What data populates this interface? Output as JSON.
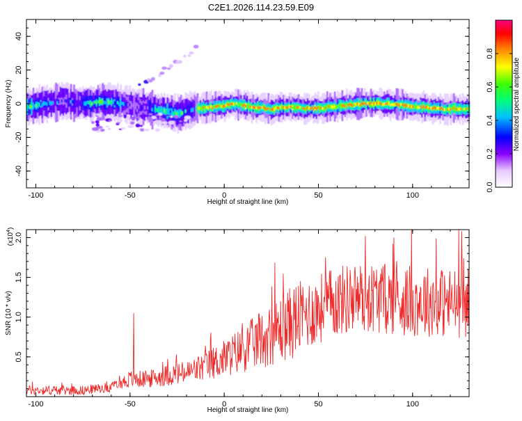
{
  "title": "C2E1.2026.114.23.59.E09",
  "colors": {
    "snr_line": "#ee2b2b"
  },
  "chart_data": [
    {
      "type": "heatmap",
      "name": "spectrogram",
      "xlabel": "Height of straight line (km)",
      "ylabel": "Frequency (Hz)",
      "xlim": [
        -105,
        130
      ],
      "ylim": [
        -50,
        50
      ],
      "xticks": [
        -100,
        -50,
        0,
        50,
        100
      ],
      "yticks": [
        -40,
        -20,
        0,
        20,
        40
      ],
      "ridge_center_hz": [
        [
          -105,
          -2
        ],
        [
          -95,
          0
        ],
        [
          -85,
          1.5
        ],
        [
          -75,
          0
        ],
        [
          -65,
          1
        ],
        [
          -55,
          0
        ],
        [
          -45,
          -2
        ],
        [
          -35,
          -4
        ],
        [
          -25,
          -6
        ],
        [
          -15,
          -3
        ],
        [
          -5,
          -2
        ],
        [
          5,
          0
        ],
        [
          15,
          -2
        ],
        [
          25,
          -3
        ],
        [
          35,
          -2
        ],
        [
          45,
          -3
        ],
        [
          55,
          -2
        ],
        [
          65,
          -1
        ],
        [
          75,
          0
        ],
        [
          85,
          0
        ],
        [
          95,
          -1
        ],
        [
          105,
          -2
        ],
        [
          115,
          -3
        ],
        [
          125,
          -3
        ],
        [
          130,
          -3
        ]
      ],
      "colorbar": {
        "label": "Normalized spectral amplitude",
        "range": [
          0.0,
          1.0
        ],
        "ticks": [
          "0.0",
          "0.2",
          "0.4",
          "0.6",
          "0.8"
        ]
      }
    },
    {
      "type": "line",
      "name": "snr",
      "xlabel": "Height of straight line (km)",
      "ylabel": "SNR (10 * v/v)",
      "yscale_label": "(x10",
      "yscale_exponent": "4",
      "xlim": [
        -105,
        130
      ],
      "ylim": [
        0,
        2.1
      ],
      "xticks": [
        -100,
        -50,
        0,
        50,
        100
      ],
      "yticks": [
        "0.5",
        "1.0",
        "1.5",
        "2.0"
      ],
      "trend_x": [
        -105,
        -90,
        -75,
        -60,
        -50,
        -40,
        -30,
        -20,
        -10,
        0,
        10,
        20,
        30,
        40,
        50,
        60,
        70,
        80,
        90,
        100,
        110,
        120,
        130
      ],
      "trend_y": [
        0.08,
        0.08,
        0.08,
        0.12,
        0.22,
        0.22,
        0.27,
        0.3,
        0.38,
        0.48,
        0.6,
        0.72,
        0.85,
        1.0,
        1.1,
        1.2,
        1.25,
        1.25,
        1.22,
        1.2,
        1.2,
        1.18,
        1.18
      ],
      "peaks": [
        [
          -48,
          1.05
        ],
        [
          75,
          2.02
        ],
        [
          90,
          2.0
        ],
        [
          126,
          2.08
        ]
      ]
    }
  ]
}
